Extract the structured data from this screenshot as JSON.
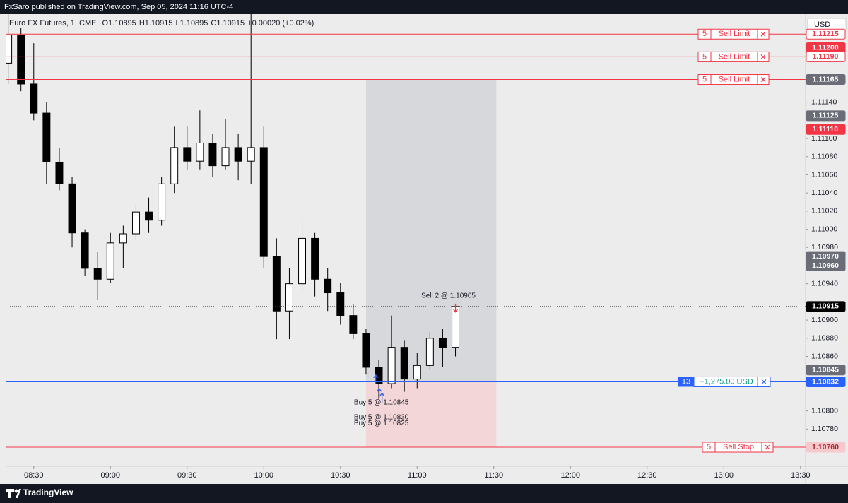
{
  "header": "FxSaro published on TradingView.com, Sep 05, 2024 11:16 UTC-4",
  "footer": "TradingView",
  "chart_data": {
    "type": "candlestick",
    "legend": {
      "symbol": "Euro FX Futures, 1, CME",
      "open": "O1.10895",
      "high": "H1.10915",
      "low": "L1.10895",
      "close": "C1.10915",
      "change": "+0.00020 (+0.02%)"
    },
    "currency": "USD",
    "x": [
      500,
      505,
      510,
      515,
      520,
      525,
      530,
      535,
      540,
      545,
      550,
      555,
      560,
      565,
      570,
      575,
      580,
      585,
      590,
      595,
      600,
      605,
      610,
      615,
      620,
      625,
      630,
      635,
      640,
      645,
      650,
      655,
      660,
      665,
      670,
      675
    ],
    "open": [
      1.11183,
      1.11214,
      1.1116,
      1.11128,
      1.11074,
      1.1105,
      1.10996,
      1.10957,
      1.10945,
      1.10985,
      1.10995,
      1.11019,
      1.1101,
      1.1105,
      1.1109,
      1.11075,
      1.11095,
      1.1107,
      1.1109,
      1.11075,
      1.1109,
      1.1097,
      1.1091,
      1.1094,
      1.1099,
      1.10945,
      1.1093,
      1.10905,
      1.10885,
      1.10848,
      1.1083,
      1.1087,
      1.10835,
      1.1085,
      1.1088,
      1.1087
    ],
    "high": [
      1.11237,
      1.11222,
      1.11205,
      1.1114,
      1.1109,
      1.11058,
      1.11,
      1.10975,
      1.10996,
      1.11004,
      1.11027,
      1.11035,
      1.11058,
      1.11113,
      1.11113,
      1.11131,
      1.11105,
      1.11121,
      1.11105,
      1.11237,
      1.11113,
      1.1099,
      1.10957,
      1.11013,
      1.10996,
      1.10957,
      1.10941,
      1.10918,
      1.1089,
      1.10856,
      1.10905,
      1.10878,
      1.10864,
      1.10887,
      1.1089,
      1.10918
    ],
    "low": [
      1.1116,
      1.11152,
      1.1112,
      1.1105,
      1.11043,
      1.1098,
      1.10949,
      1.10922,
      1.10941,
      1.10957,
      1.10988,
      1.10996,
      1.11004,
      1.1104,
      1.11066,
      1.11066,
      1.11058,
      1.11066,
      1.11054,
      1.1105,
      1.10957,
      1.10879,
      1.10879,
      1.1093,
      1.10926,
      1.1091,
      1.10895,
      1.10879,
      1.1084,
      1.10813,
      1.10825,
      1.10821,
      1.10825,
      1.10845,
      1.10848,
      1.1086
    ],
    "close": [
      1.11214,
      1.1116,
      1.11128,
      1.11074,
      1.1105,
      1.10996,
      1.10957,
      1.10945,
      1.10985,
      1.10995,
      1.11019,
      1.1101,
      1.1105,
      1.1109,
      1.11075,
      1.11095,
      1.1107,
      1.1109,
      1.11075,
      1.1109,
      1.1097,
      1.1091,
      1.1094,
      1.1099,
      1.10945,
      1.1093,
      1.10905,
      1.10885,
      1.10848,
      1.1083,
      1.1087,
      1.10835,
      1.1085,
      1.1088,
      1.1087,
      1.10915
    ],
    "up_color": "#ffffff",
    "down_color": "#000000",
    "xlim": [
      499,
      812
    ],
    "xticks": [
      {
        "value": 510,
        "label": "08:30"
      },
      {
        "value": 540,
        "label": "09:00"
      },
      {
        "value": 570,
        "label": "09:30"
      },
      {
        "value": 600,
        "label": "10:00"
      },
      {
        "value": 630,
        "label": "10:30"
      },
      {
        "value": 660,
        "label": "11:00"
      },
      {
        "value": 690,
        "label": "11:30"
      },
      {
        "value": 720,
        "label": "12:00"
      },
      {
        "value": 750,
        "label": "12:30"
      },
      {
        "value": 780,
        "label": "13:00"
      },
      {
        "value": 810,
        "label": "13:30"
      }
    ],
    "ylim": [
      1.10739,
      1.11237
    ],
    "yticks": [
      {
        "value": 1.1114,
        "label": "1.11140"
      },
      {
        "value": 1.111,
        "label": "1.11100"
      },
      {
        "value": 1.1108,
        "label": "1.11080"
      },
      {
        "value": 1.1106,
        "label": "1.11060"
      },
      {
        "value": 1.1104,
        "label": "1.11040"
      },
      {
        "value": 1.1102,
        "label": "1.11020"
      },
      {
        "value": 1.11,
        "label": "1.11000"
      },
      {
        "value": 1.1098,
        "label": "1.10980"
      },
      {
        "value": 1.1094,
        "label": "1.10940"
      },
      {
        "value": 1.109,
        "label": "1.10900"
      },
      {
        "value": 1.1088,
        "label": "1.10880"
      },
      {
        "value": 1.1086,
        "label": "1.10860"
      },
      {
        "value": 1.108,
        "label": "1.10800"
      },
      {
        "value": 1.1078,
        "label": "1.10780"
      }
    ],
    "grid": false,
    "orders": [
      {
        "price": 1.11215,
        "qty": 5,
        "label": "Sell Limit"
      },
      {
        "price": 1.1119,
        "qty": 5,
        "label": "Sell Limit"
      },
      {
        "price": 1.11165,
        "qty": 5,
        "label": "Sell Limit"
      },
      {
        "price": 1.1076,
        "qty": 5,
        "label": "Sell Stop"
      }
    ],
    "order_color": "#f23645",
    "position": {
      "price": 1.10832,
      "qty": 13,
      "pnl": "+1,275.00 USD",
      "color": "#2962ff"
    },
    "risk_reward": {
      "x_start": 640,
      "x_end": 691,
      "target": 1.11165,
      "entry": 1.10832,
      "stop": 1.1076
    },
    "annotations": [
      {
        "text": "Sell 2 @ 1.10905",
        "time": 675,
        "price": 1.10905,
        "side": "sell"
      },
      {
        "text": "Buy 5 @ 1.10845",
        "time": 646,
        "price": 1.10845,
        "side": "buy"
      },
      {
        "text": "Buy 5 @ 1.10830",
        "time": 646,
        "price": 1.1083,
        "side": "buy"
      },
      {
        "text": "Buy 5 @ 1.10825",
        "time": 646,
        "price": 1.10825,
        "side": "buy"
      }
    ],
    "price_badges": [
      {
        "value": 1.11215,
        "label": "1.11215",
        "fill": "#ffffff",
        "text": "#f23645"
      },
      {
        "value": 1.112,
        "label": "1.11200",
        "fill": "#f23645",
        "text": "#ffffff"
      },
      {
        "value": 1.1119,
        "label": "1.11190",
        "fill": "#ffffff",
        "text": "#f23645"
      },
      {
        "value": 1.11165,
        "label": "1.11165",
        "fill": "#6a6d78",
        "text": "#ffffff"
      },
      {
        "value": 1.11125,
        "label": "1.11125",
        "fill": "#6a6d78",
        "text": "#ffffff"
      },
      {
        "value": 1.1111,
        "label": "1.11110",
        "fill": "#f23645",
        "text": "#ffffff"
      },
      {
        "value": 1.1097,
        "label": "1.10970",
        "fill": "#6a6d78",
        "text": "#ffffff"
      },
      {
        "value": 1.1096,
        "label": "1.10960",
        "fill": "#6a6d78",
        "text": "#ffffff"
      },
      {
        "value": 1.10915,
        "label": "1.10915",
        "fill": "#000000",
        "text": "#ffffff"
      },
      {
        "value": 1.10845,
        "label": "1.10845",
        "fill": "#6a6d78",
        "text": "#ffffff"
      },
      {
        "value": 1.10832,
        "label": "1.10832",
        "fill": "#2962ff",
        "text": "#ffffff"
      },
      {
        "value": 1.1076,
        "label": "1.10760",
        "fill": "#f7c9cc",
        "text": "#b22833"
      }
    ]
  }
}
